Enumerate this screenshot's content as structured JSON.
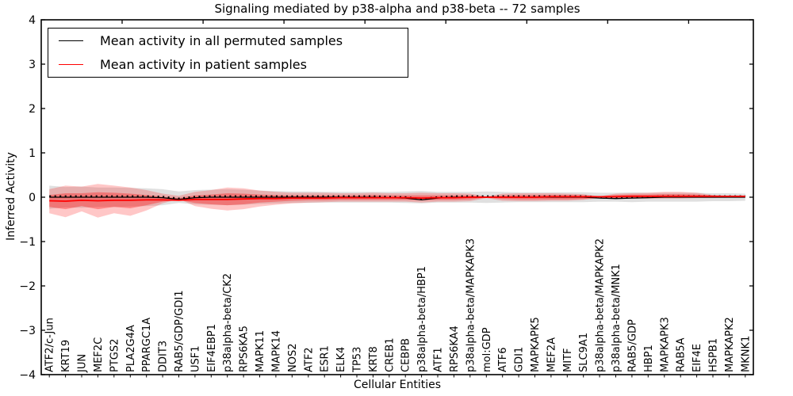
{
  "figure": {
    "title": "Signaling mediated by p38-alpha and p38-beta -- 72 samples",
    "xlabel": "Cellular Entities",
    "ylabel": "Inferred Activity"
  },
  "legend": {
    "items": [
      {
        "label": "Mean activity in all permuted samples",
        "color": "#000000"
      },
      {
        "label": "Mean activity in patient samples",
        "color": "#ff0000"
      }
    ]
  },
  "chart_data": {
    "type": "line",
    "title": "Signaling mediated by p38-alpha and p38-beta -- 72 samples",
    "xlabel": "Cellular Entities",
    "ylabel": "Inferred Activity",
    "ylim": [
      -4,
      4
    ],
    "ytick_labels": [
      "4",
      "3",
      "2",
      "1",
      "0",
      "−1",
      "−2",
      "−3",
      "−4"
    ],
    "ytick_values": [
      4,
      3,
      2,
      1,
      0,
      -1,
      -2,
      -3,
      -4
    ],
    "grid": false,
    "legend_position": "upper left",
    "categories": [
      "ATF2/c-Jun",
      "KRT19",
      "JUN",
      "MEF2C",
      "PTGS2",
      "PLA2G4A",
      "PPARGC1A",
      "DDIT3",
      "RAB5/GDP/GDI1",
      "USF1",
      "EIF4EBP1",
      "p38alpha-beta/CK2",
      "RPS6KA5",
      "MAPK11",
      "MAPK14",
      "NOS2",
      "ATF2",
      "ESR1",
      "ELK4",
      "TP53",
      "KRT8",
      "CREB1",
      "CEBPB",
      "p38alpha-beta/HBP1",
      "ATF1",
      "RPS6KA4",
      "p38alpha-beta/MAPKAPK3",
      "mol:GDP",
      "ATF6",
      "GDI1",
      "MAPKAPK5",
      "MEF2A",
      "MITF",
      "SLC9A1",
      "p38alpha-beta/MAPKAPK2",
      "p38alpha-beta/MNK1",
      "RAB5/GDP",
      "HBP1",
      "MAPKAPK3",
      "RAB5A",
      "EIF4E",
      "HSPB1",
      "MAPKAPK2",
      "MKNK1"
    ],
    "series": [
      {
        "name": "Mean activity in all permuted samples",
        "color": "#000000",
        "values": [
          0,
          0,
          0,
          0,
          0,
          0,
          0,
          -0.01,
          -0.05,
          -0.01,
          0,
          0,
          0,
          0,
          0,
          0,
          0,
          0,
          0,
          0,
          0,
          -0.01,
          -0.02,
          -0.06,
          -0.02,
          0,
          0,
          0,
          0,
          0,
          0,
          0,
          0,
          0,
          -0.02,
          -0.03,
          -0.02,
          -0.01,
          0,
          0,
          0,
          0,
          0,
          0
        ],
        "band_upper": [
          0.26,
          0.23,
          0.24,
          0.22,
          0.22,
          0.21,
          0.2,
          0.18,
          0.13,
          0.16,
          0.17,
          0.18,
          0.17,
          0.15,
          0.14,
          0.13,
          0.13,
          0.12,
          0.12,
          0.12,
          0.12,
          0.12,
          0.13,
          0.14,
          0.12,
          0.12,
          0.12,
          0.13,
          0.12,
          0.11,
          0.11,
          0.11,
          0.11,
          0.11,
          0.1,
          0.1,
          0.11,
          0.1,
          0.1,
          0.1,
          0.1,
          0.09,
          0.09,
          0.08
        ],
        "band_lower": [
          -0.26,
          -0.23,
          -0.24,
          -0.22,
          -0.22,
          -0.21,
          -0.2,
          -0.18,
          -0.13,
          -0.16,
          -0.17,
          -0.18,
          -0.17,
          -0.15,
          -0.14,
          -0.13,
          -0.13,
          -0.12,
          -0.12,
          -0.12,
          -0.12,
          -0.12,
          -0.13,
          -0.14,
          -0.12,
          -0.12,
          -0.12,
          -0.13,
          -0.12,
          -0.11,
          -0.11,
          -0.11,
          -0.11,
          -0.11,
          -0.1,
          -0.1,
          -0.11,
          -0.1,
          -0.1,
          -0.1,
          -0.1,
          -0.09,
          -0.09,
          -0.08
        ]
      },
      {
        "name": "Mean activity in patient samples",
        "color": "#ff0000",
        "values": [
          -0.08,
          -0.09,
          -0.07,
          -0.08,
          -0.07,
          -0.07,
          -0.06,
          -0.06,
          -0.07,
          -0.05,
          -0.05,
          -0.05,
          -0.04,
          -0.03,
          -0.03,
          -0.02,
          -0.02,
          -0.02,
          -0.01,
          -0.01,
          -0.01,
          -0.01,
          -0.01,
          -0.02,
          -0.01,
          -0.01,
          0,
          0,
          0,
          0,
          0,
          0.01,
          0.01,
          0.01,
          0.01,
          0.01,
          0.02,
          0.02,
          0.02,
          0.02,
          0.02,
          0.02,
          0.02,
          0.02
        ],
        "outer_upper": [
          0.18,
          0.26,
          0.24,
          0.3,
          0.26,
          0.22,
          0.16,
          0.08,
          0.03,
          0.12,
          0.16,
          0.22,
          0.2,
          0.15,
          0.12,
          0.1,
          0.1,
          0.1,
          0.09,
          0.09,
          0.1,
          0.09,
          0.09,
          0.1,
          0.09,
          0.09,
          0.08,
          0.02,
          0.08,
          0.09,
          0.09,
          0.09,
          0.08,
          0.07,
          0.02,
          0.08,
          0.09,
          0.1,
          0.12,
          0.12,
          0.1,
          0.05,
          0.03,
          0.03
        ],
        "outer_lower": [
          -0.36,
          -0.45,
          -0.32,
          -0.46,
          -0.36,
          -0.42,
          -0.3,
          -0.14,
          -0.04,
          -0.2,
          -0.26,
          -0.3,
          -0.27,
          -0.21,
          -0.17,
          -0.14,
          -0.12,
          -0.11,
          -0.1,
          -0.1,
          -0.1,
          -0.1,
          -0.1,
          -0.12,
          -0.1,
          -0.1,
          -0.09,
          -0.02,
          -0.08,
          -0.09,
          -0.09,
          -0.08,
          -0.08,
          -0.06,
          -0.02,
          -0.03,
          -0.03,
          -0.03,
          -0.03,
          -0.03,
          -0.02,
          -0.02,
          -0.01,
          -0.01
        ],
        "inner_upper": [
          0.05,
          0.09,
          0.09,
          0.11,
          0.1,
          0.08,
          0.05,
          0.01,
          -0.02,
          0.04,
          0.06,
          0.09,
          0.08,
          0.06,
          0.05,
          0.04,
          0.04,
          0.04,
          0.04,
          0.04,
          0.05,
          0.04,
          0.04,
          0.04,
          0.04,
          0.04,
          0.04,
          0.01,
          0.04,
          0.05,
          0.05,
          0.05,
          0.05,
          0.04,
          0.02,
          0.05,
          0.06,
          0.06,
          0.07,
          0.07,
          0.06,
          0.04,
          0.03,
          0.03
        ],
        "inner_lower": [
          -0.22,
          -0.27,
          -0.2,
          -0.27,
          -0.22,
          -0.25,
          -0.18,
          -0.1,
          -0.06,
          -0.13,
          -0.16,
          -0.18,
          -0.16,
          -0.12,
          -0.1,
          -0.08,
          -0.07,
          -0.07,
          -0.06,
          -0.06,
          -0.06,
          -0.06,
          -0.06,
          -0.07,
          -0.06,
          -0.06,
          -0.05,
          -0.01,
          -0.04,
          -0.05,
          -0.05,
          -0.05,
          -0.05,
          -0.04,
          -0.01,
          -0.01,
          -0.01,
          -0.01,
          -0.01,
          -0.01,
          0,
          0,
          0,
          0
        ]
      }
    ],
    "band_colors": {
      "permuted_band": "rgba(0,0,0,0.12)",
      "patient_outer": "rgba(255,0,0,0.22)",
      "patient_inner": "rgba(255,0,0,0.32)"
    }
  }
}
